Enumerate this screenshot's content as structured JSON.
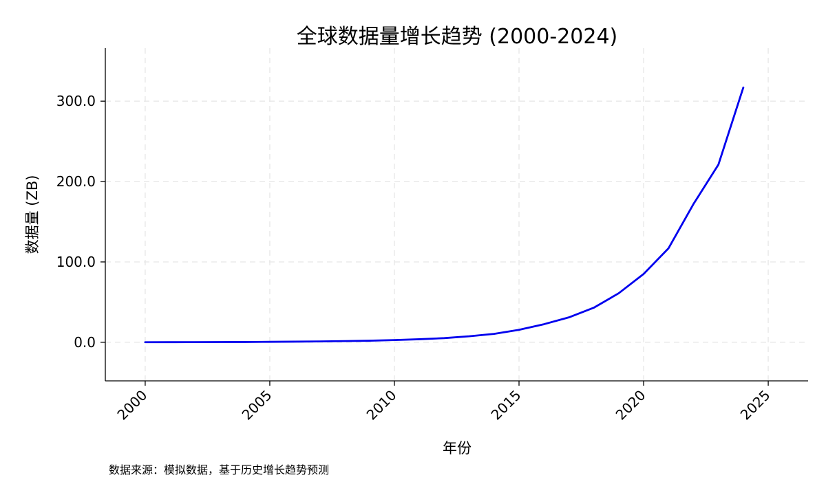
{
  "chart_data": {
    "type": "line",
    "title": "全球数据量增长趋势 (2000-2024)",
    "xlabel": "年份",
    "ylabel": "数据量 (ZB)",
    "source_note": "数据来源：模拟数据，基于历史增长趋势预测",
    "xlim": [
      1998.4,
      2026.6
    ],
    "ylim": [
      -48,
      366
    ],
    "x_ticks": [
      2000,
      2005,
      2010,
      2015,
      2020,
      2025
    ],
    "x_tick_labels": [
      "2000",
      "2005",
      "2010",
      "2015",
      "2020",
      "2025"
    ],
    "y_ticks": [
      0,
      100,
      200,
      300
    ],
    "y_tick_labels": [
      "0.0",
      "100.0",
      "200.0",
      "300.0"
    ],
    "grid": true,
    "line_color": "#0000ee",
    "grid_color": "#e6e6e6",
    "series": [
      {
        "x": [
          2000,
          2001,
          2002,
          2003,
          2004,
          2005,
          2006,
          2007,
          2008,
          2009,
          2010,
          2011,
          2012,
          2013,
          2014,
          2015,
          2016,
          2017,
          2018,
          2019,
          2020,
          2021,
          2022,
          2023,
          2024
        ],
        "values": [
          0.1,
          0.15,
          0.2,
          0.3,
          0.4,
          0.6,
          0.8,
          1.1,
          1.5,
          2.0,
          2.8,
          3.8,
          5.2,
          7.5,
          10.5,
          15.5,
          22.5,
          31.0,
          43.0,
          61.0,
          85.0,
          117.0,
          172.0,
          221.0,
          317.0
        ]
      }
    ]
  }
}
